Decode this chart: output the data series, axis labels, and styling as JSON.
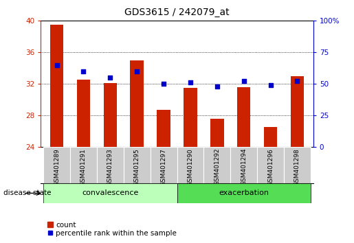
{
  "title": "GDS3615 / 242079_at",
  "samples": [
    "GSM401289",
    "GSM401291",
    "GSM401293",
    "GSM401295",
    "GSM401297",
    "GSM401290",
    "GSM401292",
    "GSM401294",
    "GSM401296",
    "GSM401298"
  ],
  "counts": [
    39.5,
    32.5,
    32.1,
    35.0,
    28.7,
    31.5,
    27.6,
    31.6,
    26.5,
    33.0
  ],
  "percentile_right": [
    65,
    60,
    55,
    60,
    50,
    51,
    48,
    52,
    49,
    52
  ],
  "ylim_left": [
    24,
    40
  ],
  "ylim_right": [
    0,
    100
  ],
  "yticks_left": [
    24,
    28,
    32,
    36,
    40
  ],
  "yticks_right": [
    0,
    25,
    50,
    75,
    100
  ],
  "bar_color": "#cc2200",
  "dot_color": "#0000cc",
  "group1_label": "convalescence",
  "group2_label": "exacerbation",
  "group1_indices": [
    0,
    1,
    2,
    3,
    4
  ],
  "group2_indices": [
    5,
    6,
    7,
    8,
    9
  ],
  "group1_color": "#bbffbb",
  "group2_color": "#55dd55",
  "sample_bg_color": "#cccccc",
  "disease_state_label": "disease state",
  "legend_count_label": "count",
  "legend_percentile_label": "percentile rank within the sample",
  "title_fontsize": 10,
  "tick_fontsize": 7.5,
  "label_fontsize": 8
}
